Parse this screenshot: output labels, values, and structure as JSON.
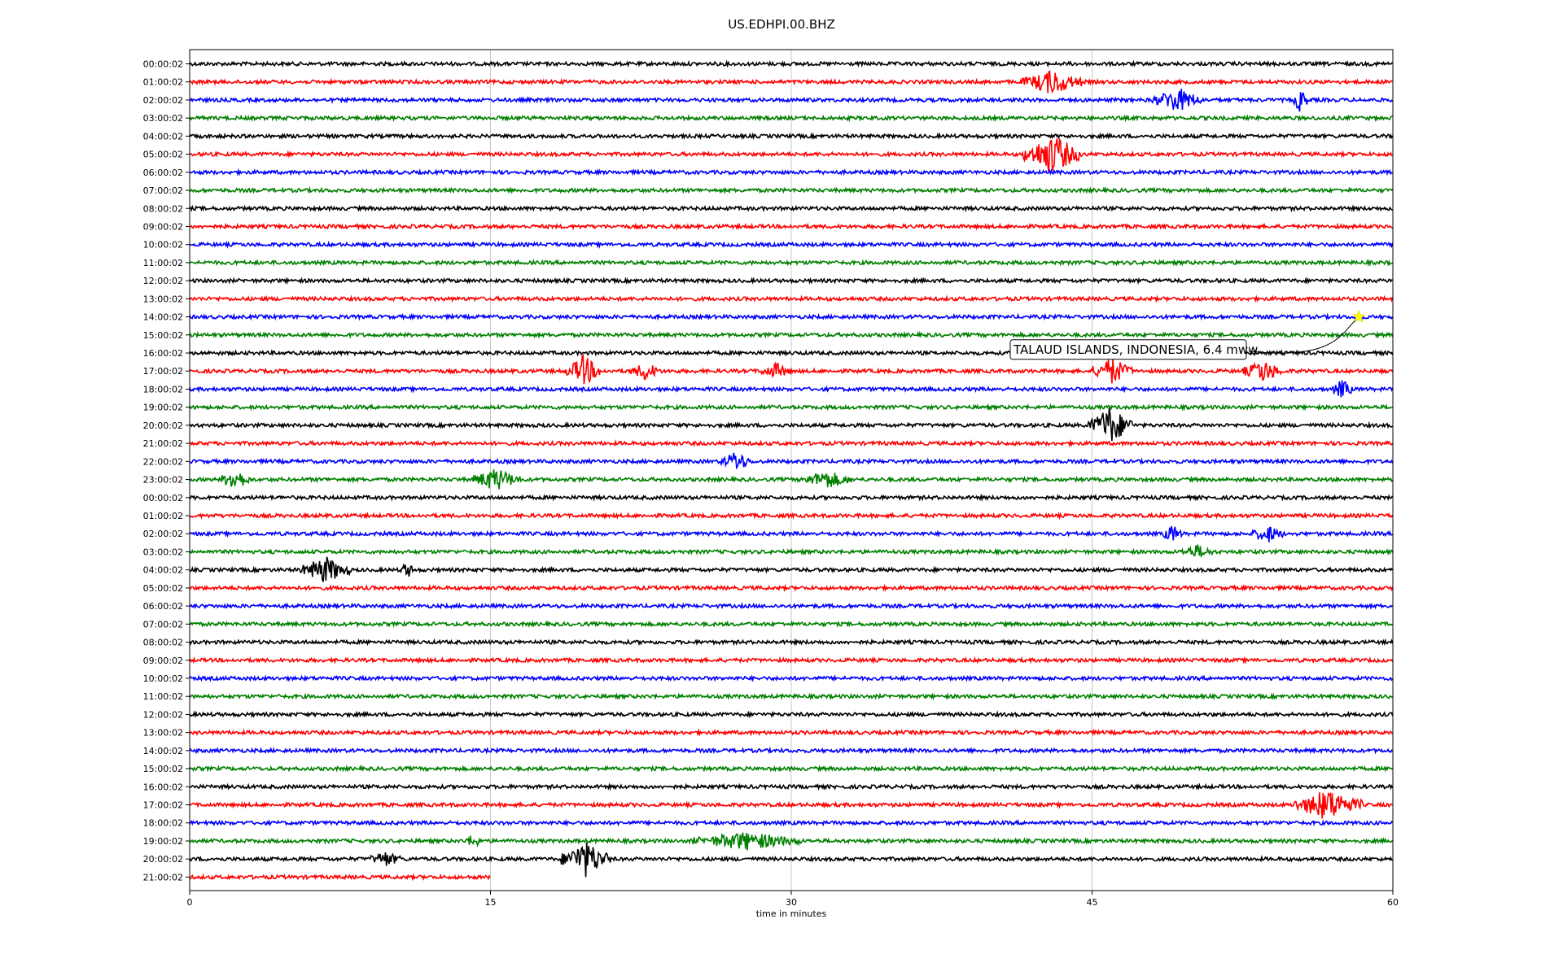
{
  "chart_data": {
    "type": "line",
    "title": "US.EDHPI.00.BHZ",
    "xlabel": "time in minutes",
    "ylabel": "",
    "xlim": [
      0,
      60
    ],
    "x_ticks": [
      "0",
      "15",
      "30",
      "45",
      "60"
    ],
    "x_tick_values": [
      0,
      15,
      30,
      45,
      60
    ],
    "grid": "vertical lines at x ticks",
    "trace_colors": [
      "#000000",
      "#ff0000",
      "#0000ff",
      "#008000"
    ],
    "trace_labels": [
      "00:00:02",
      "01:00:02",
      "02:00:02",
      "03:00:02",
      "04:00:02",
      "05:00:02",
      "06:00:02",
      "07:00:02",
      "08:00:02",
      "09:00:02",
      "10:00:02",
      "11:00:02",
      "12:00:02",
      "13:00:02",
      "14:00:02",
      "15:00:02",
      "16:00:02",
      "17:00:02",
      "18:00:02",
      "19:00:02",
      "20:00:02",
      "21:00:02",
      "22:00:02",
      "23:00:02",
      "00:00:02",
      "01:00:02",
      "02:00:02",
      "03:00:02",
      "04:00:02",
      "05:00:02",
      "06:00:02",
      "07:00:02",
      "08:00:02",
      "09:00:02",
      "10:00:02",
      "11:00:02",
      "12:00:02",
      "13:00:02",
      "14:00:02",
      "15:00:02",
      "16:00:02",
      "17:00:02",
      "18:00:02",
      "19:00:02",
      "20:00:02",
      "21:00:02"
    ],
    "last_trace_end_minute": 15,
    "events": [
      {
        "trace": 1,
        "start": 41.5,
        "end": 44.5,
        "amp": 1.0
      },
      {
        "trace": 2,
        "start": 48.0,
        "end": 50.5,
        "amp": 1.0
      },
      {
        "trace": 2,
        "start": 55.0,
        "end": 55.8,
        "amp": 1.0
      },
      {
        "trace": 5,
        "start": 41.5,
        "end": 44.5,
        "amp": 1.7
      },
      {
        "trace": 17,
        "start": 18.8,
        "end": 20.5,
        "amp": 1.3
      },
      {
        "trace": 17,
        "start": 22.0,
        "end": 23.5,
        "amp": 0.7
      },
      {
        "trace": 17,
        "start": 28.5,
        "end": 30.0,
        "amp": 0.6
      },
      {
        "trace": 17,
        "start": 45.0,
        "end": 47.0,
        "amp": 1.1
      },
      {
        "trace": 17,
        "start": 52.5,
        "end": 54.5,
        "amp": 0.9
      },
      {
        "trace": 18,
        "start": 57.0,
        "end": 58.0,
        "amp": 0.8
      },
      {
        "trace": 20,
        "start": 44.8,
        "end": 47.0,
        "amp": 1.6
      },
      {
        "trace": 22,
        "start": 26.5,
        "end": 28.0,
        "amp": 0.8
      },
      {
        "trace": 23,
        "start": 1.5,
        "end": 3.0,
        "amp": 0.9
      },
      {
        "trace": 23,
        "start": 14.0,
        "end": 16.5,
        "amp": 0.9
      },
      {
        "trace": 23,
        "start": 30.5,
        "end": 33.0,
        "amp": 0.7
      },
      {
        "trace": 26,
        "start": 48.5,
        "end": 49.5,
        "amp": 0.7
      },
      {
        "trace": 26,
        "start": 53.0,
        "end": 54.5,
        "amp": 0.7
      },
      {
        "trace": 27,
        "start": 49.5,
        "end": 51.0,
        "amp": 0.5
      },
      {
        "trace": 28,
        "start": 5.5,
        "end": 8.0,
        "amp": 1.1
      },
      {
        "trace": 28,
        "start": 10.5,
        "end": 11.2,
        "amp": 0.6
      },
      {
        "trace": 41,
        "start": 55.0,
        "end": 58.5,
        "amp": 1.3
      },
      {
        "trace": 43,
        "start": 13.8,
        "end": 14.5,
        "amp": 0.6
      },
      {
        "trace": 43,
        "start": 25.0,
        "end": 30.5,
        "amp": 0.7
      },
      {
        "trace": 44,
        "start": 9.0,
        "end": 10.5,
        "amp": 0.6
      },
      {
        "trace": 44,
        "start": 18.5,
        "end": 21.0,
        "amp": 1.5
      }
    ],
    "annotations": [
      {
        "text": "TALAUD ISLANDS, INDONESIA, 6.4 mww",
        "trace": 14,
        "minute": 58.3,
        "marker": "star",
        "marker_color": "#ffff00"
      }
    ]
  }
}
